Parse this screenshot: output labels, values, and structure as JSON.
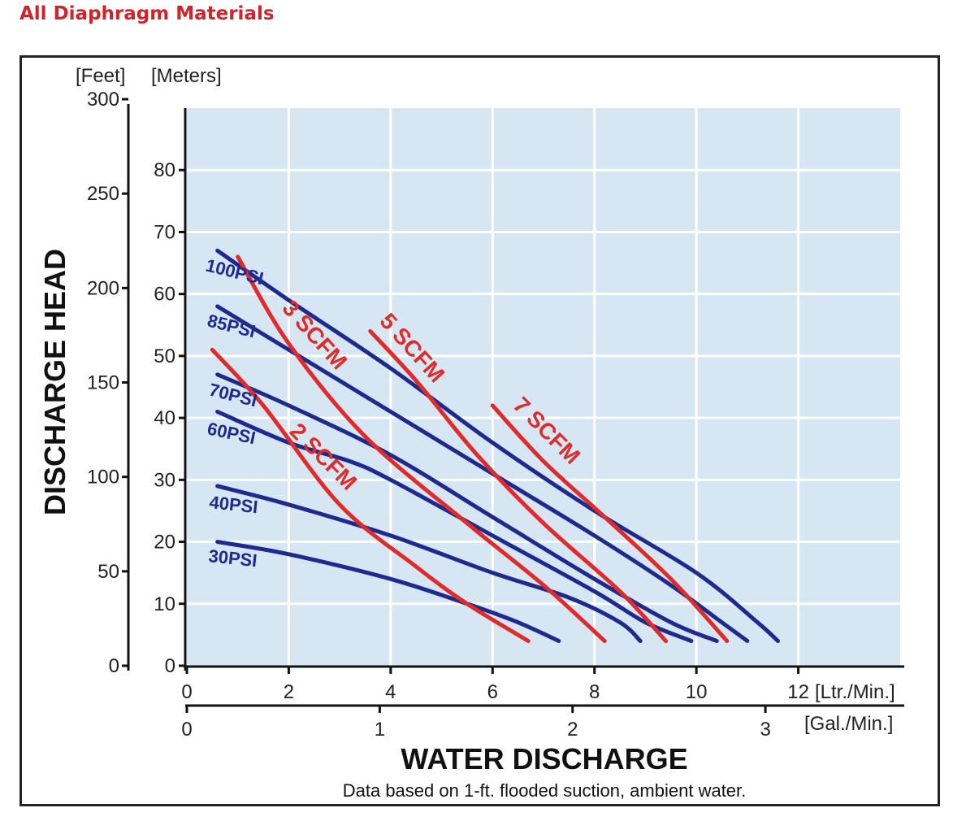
{
  "heading": "All Diaphragm Materials",
  "colors": {
    "plot_bg": "#d6e6f3",
    "grid": "#ffffff",
    "psi_curve": "#1f2a8f",
    "scfm_curve": "#e02b2b",
    "heading": "#d2232a"
  },
  "chart_data": {
    "type": "line",
    "xlabel": "WATER DISCHARGE",
    "ylabel": "DISCHARGE HEAD",
    "note": "Data based on 1-ft. flooded suction, ambient water.",
    "x_units": {
      "primary": "[Ltr./Min.]",
      "secondary": "[Gal./Min.]"
    },
    "y_units": {
      "left": "[Feet]",
      "right": "[Meters]"
    },
    "xlim": [
      0,
      14
    ],
    "ylim": [
      0,
      90
    ],
    "x_ticks": [
      "0",
      "2",
      "4",
      "6",
      "8",
      "10",
      "12"
    ],
    "x_ticks_gal": [
      "0",
      "1",
      "2",
      "3"
    ],
    "y_ticks_m": [
      "0",
      "10",
      "20",
      "30",
      "40",
      "50",
      "60",
      "70",
      "80"
    ],
    "y_ticks_ft": [
      "0",
      "50",
      "100",
      "150",
      "200",
      "250",
      "300"
    ],
    "grid": true,
    "psi_series": [
      {
        "name": "100PSI",
        "x": [
          0.6,
          2,
          4,
          6,
          8,
          10,
          11.2,
          11.6
        ],
        "y": [
          67,
          59,
          48,
          36,
          25,
          15,
          7,
          4
        ]
      },
      {
        "name": "85PSI",
        "x": [
          0.6,
          2,
          4,
          6,
          8,
          9.5,
          10.5,
          11
        ],
        "y": [
          58,
          51,
          41,
          31,
          21,
          13,
          7,
          4
        ]
      },
      {
        "name": "70PSI",
        "x": [
          0.6,
          2,
          4,
          6,
          8,
          9.5,
          10.4
        ],
        "y": [
          47,
          42,
          34,
          24,
          14,
          7,
          4
        ]
      },
      {
        "name": "60PSI",
        "x": [
          0.6,
          2,
          3.2,
          4,
          6,
          8,
          9,
          9.9
        ],
        "y": [
          41,
          36,
          33,
          30,
          21,
          12,
          7,
          4
        ]
      },
      {
        "name": "40PSI",
        "x": [
          0.6,
          2,
          4,
          6,
          7.5,
          8.5,
          8.9
        ],
        "y": [
          29,
          26,
          21,
          15,
          11,
          7,
          4
        ]
      },
      {
        "name": "30PSI",
        "x": [
          0.6,
          2,
          4,
          5.5,
          6.5,
          7.3
        ],
        "y": [
          20,
          18,
          14,
          10,
          7,
          4
        ]
      }
    ],
    "scfm_series": [
      {
        "name": "2 SCFM",
        "x": [
          0.5,
          1.5,
          3,
          4.5,
          5.5,
          6.7
        ],
        "y": [
          51,
          42,
          26,
          16,
          10,
          4
        ]
      },
      {
        "name": "3 SCFM",
        "x": [
          1.0,
          2.0,
          3.5,
          5.5,
          7,
          8.2
        ],
        "y": [
          66,
          52,
          37,
          23,
          13,
          4
        ]
      },
      {
        "name": "5 SCFM",
        "x": [
          3.6,
          4.5,
          5.7,
          7,
          8.5,
          9.4
        ],
        "y": [
          54,
          46,
          34,
          23,
          12,
          4
        ]
      },
      {
        "name": "7 SCFM",
        "x": [
          6.0,
          7,
          8.2,
          9.5,
          10.6
        ],
        "y": [
          42,
          33,
          24,
          14,
          4
        ]
      }
    ],
    "psi_labels": [
      "100PSI",
      "85PSI",
      "70PSI",
      "60PSI",
      "40PSI",
      "30PSI"
    ],
    "scfm_labels": [
      "3 SCFM",
      "5 SCFM",
      "2 SCFM",
      "7 SCFM"
    ]
  }
}
